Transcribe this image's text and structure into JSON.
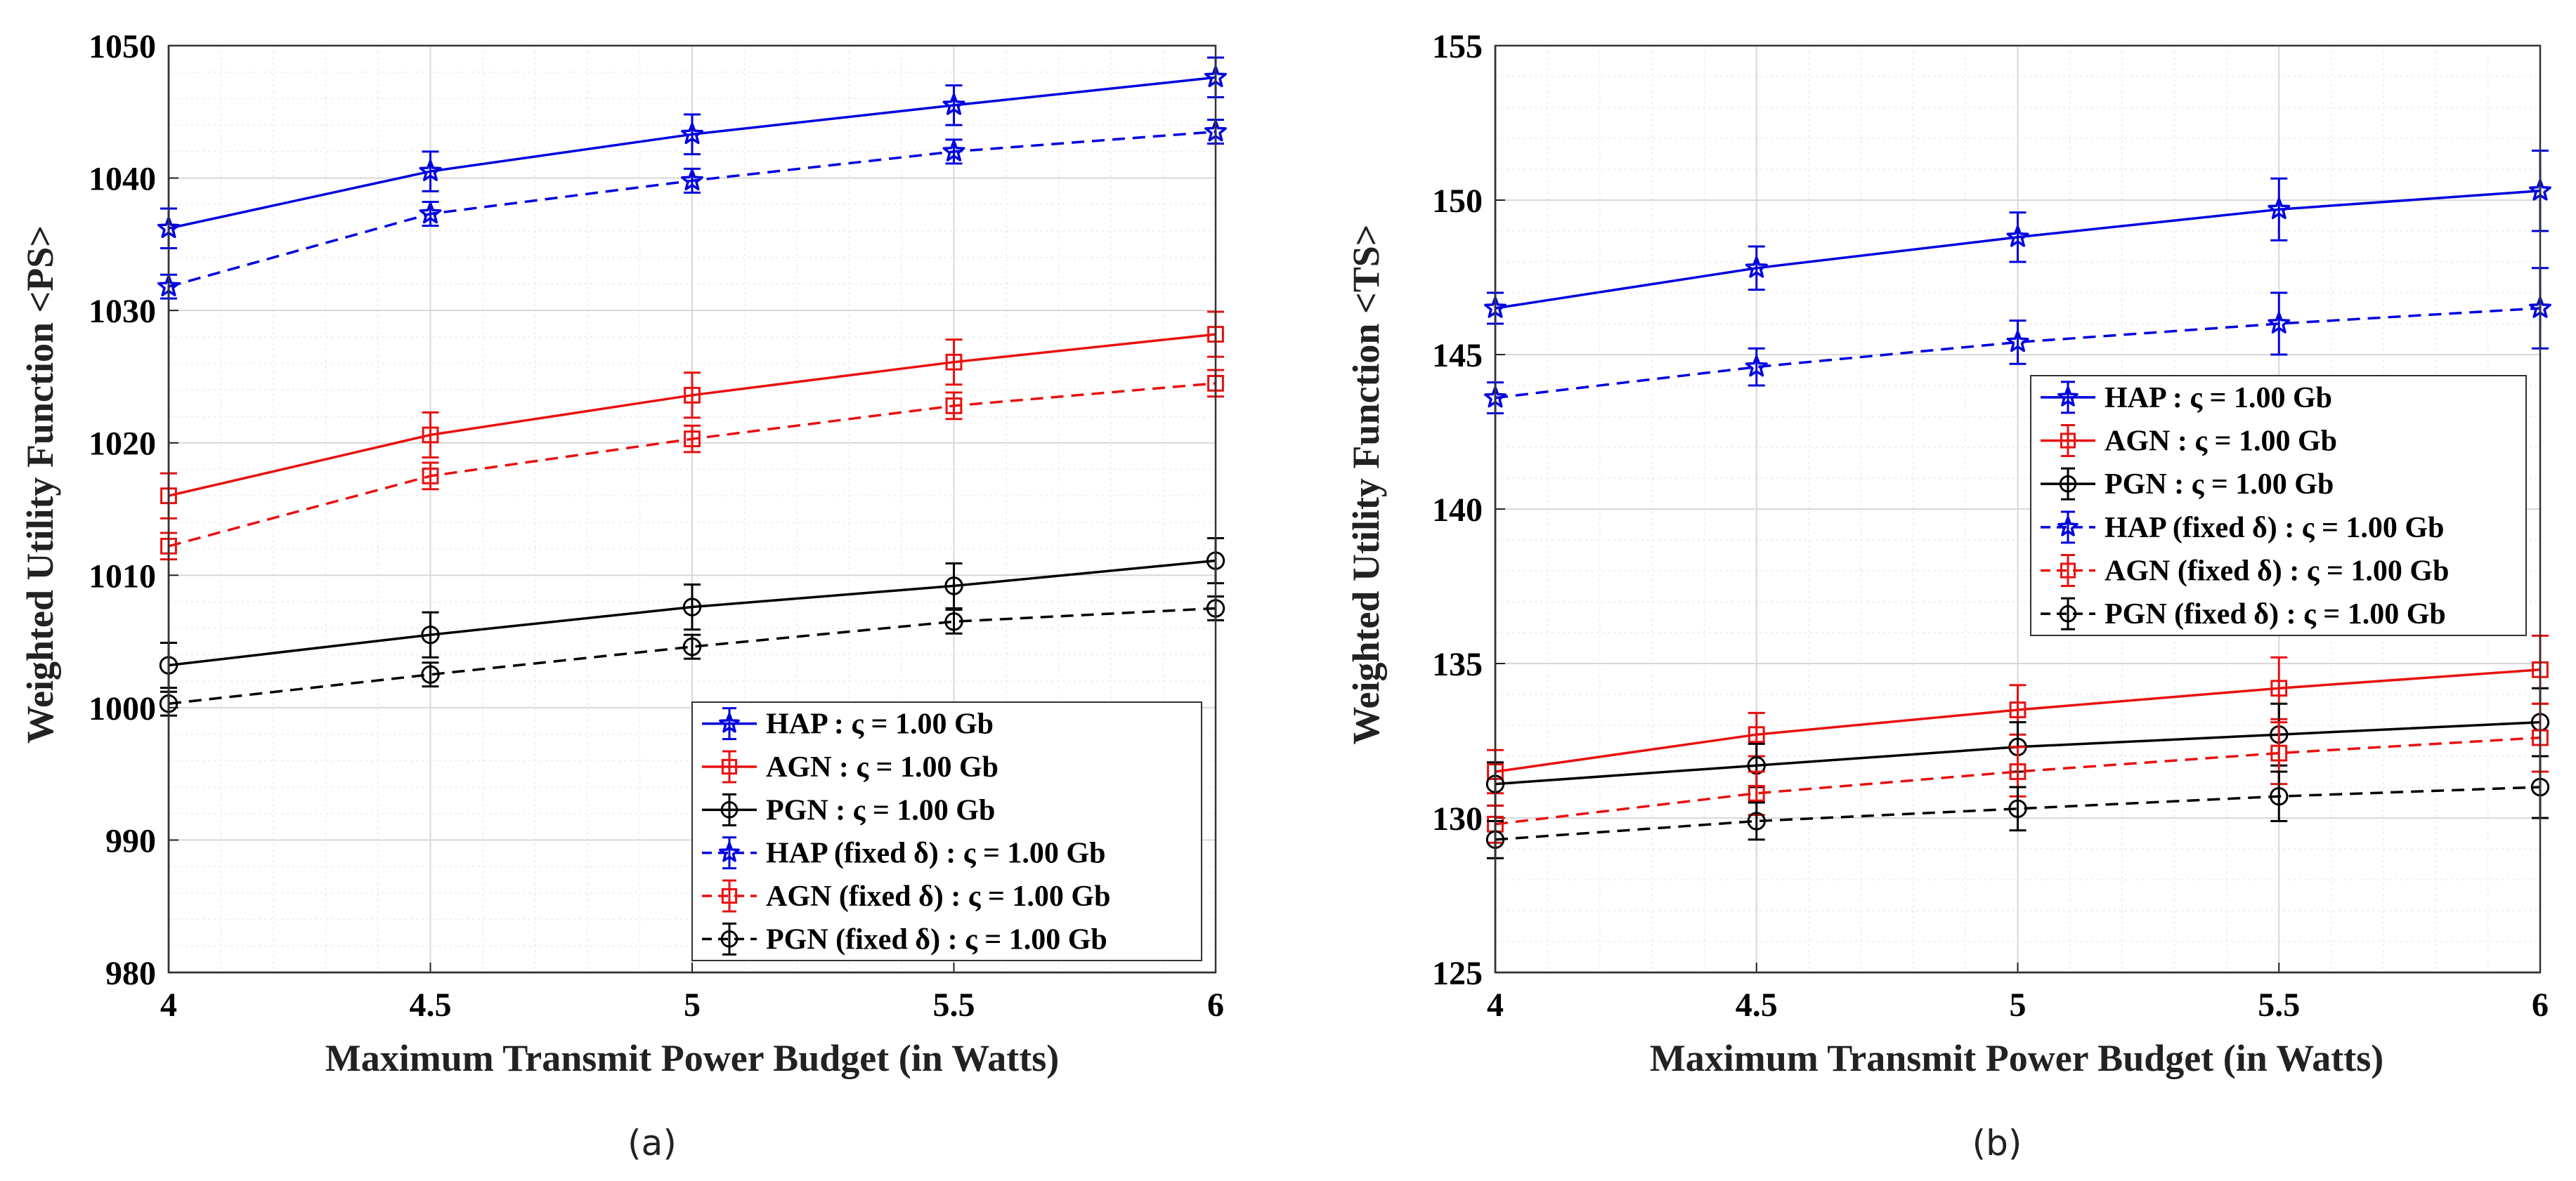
{
  "chart_data": [
    {
      "id": "a",
      "type": "line",
      "caption": "(a)",
      "xlabel": "Maximum Transmit Power Budget (in Watts)",
      "ylabel": "Weighted Utility Function <PS>",
      "x": [
        4,
        4.5,
        5,
        5.5,
        6
      ],
      "x_tick_labels": [
        "4",
        "4.5",
        "5",
        "5.5",
        "6"
      ],
      "xlim": [
        4,
        6
      ],
      "ylim": [
        980,
        1050
      ],
      "y_ticks": [
        980,
        990,
        1000,
        1010,
        1020,
        1030,
        1040,
        1050
      ],
      "grid": true,
      "legend_position": "bottom-right",
      "series": [
        {
          "name": "HAP : ς = 1.00 Gb",
          "color": "#0000e0",
          "dash": "solid",
          "marker": "star",
          "values": [
            1036.2,
            1040.5,
            1043.3,
            1045.5,
            1047.6
          ],
          "errors": [
            1.5,
            1.5,
            1.5,
            1.5,
            1.5
          ]
        },
        {
          "name": "AGN : ς = 1.00 Gb",
          "color": "#e81010",
          "dash": "solid",
          "marker": "square",
          "values": [
            1016.0,
            1020.6,
            1023.6,
            1026.1,
            1028.2
          ],
          "errors": [
            1.7,
            1.7,
            1.7,
            1.7,
            1.7
          ]
        },
        {
          "name": "PGN : ς = 1.00 Gb",
          "color": "#000000",
          "dash": "solid",
          "marker": "circle",
          "values": [
            1003.2,
            1005.5,
            1007.6,
            1009.2,
            1011.1
          ],
          "errors": [
            1.7,
            1.7,
            1.7,
            1.7,
            1.7
          ]
        },
        {
          "name": "HAP (fixed δ) : ς = 1.00 Gb",
          "color": "#0000e0",
          "dash": "dashed",
          "marker": "star",
          "values": [
            1031.8,
            1037.3,
            1039.8,
            1042.0,
            1043.5
          ],
          "errors": [
            0.9,
            0.9,
            0.9,
            0.9,
            0.9
          ]
        },
        {
          "name": "AGN (fixed δ) : ς = 1.00 Gb",
          "color": "#e81010",
          "dash": "dashed",
          "marker": "square",
          "values": [
            1012.2,
            1017.5,
            1020.3,
            1022.8,
            1024.5
          ],
          "errors": [
            1.0,
            1.0,
            1.0,
            1.0,
            1.0
          ]
        },
        {
          "name": "PGN (fixed δ) : ς = 1.00 Gb",
          "color": "#000000",
          "dash": "dashed",
          "marker": "circle",
          "values": [
            1000.3,
            1002.5,
            1004.6,
            1006.5,
            1007.5
          ],
          "errors": [
            0.9,
            0.9,
            0.9,
            0.9,
            0.9
          ]
        }
      ]
    },
    {
      "id": "b",
      "type": "line",
      "caption": "(b)",
      "xlabel": "Maximum Transmit Power Budget (in Watts)",
      "ylabel": "Weighted Utility Function <TS>",
      "x": [
        4,
        4.5,
        5,
        5.5,
        6
      ],
      "x_tick_labels": [
        "4",
        "4.5",
        "5",
        "5.5",
        "6"
      ],
      "xlim": [
        4,
        6
      ],
      "ylim": [
        125,
        155
      ],
      "y_ticks": [
        125,
        130,
        135,
        140,
        145,
        150,
        155
      ],
      "grid": true,
      "legend_position": "middle-right",
      "series": [
        {
          "name": "HAP : ς = 1.00 Gb",
          "color": "#0000e0",
          "dash": "solid",
          "marker": "star",
          "values": [
            146.5,
            147.8,
            148.8,
            149.7,
            150.3
          ],
          "errors": [
            0.5,
            0.7,
            0.8,
            1.0,
            1.3
          ]
        },
        {
          "name": "AGN : ς = 1.00 Gb",
          "color": "#e81010",
          "dash": "solid",
          "marker": "square",
          "values": [
            131.5,
            132.7,
            133.5,
            134.2,
            134.8
          ],
          "errors": [
            0.7,
            0.7,
            0.8,
            1.0,
            1.1
          ]
        },
        {
          "name": "PGN : ς = 1.00 Gb",
          "color": "#000000",
          "dash": "solid",
          "marker": "circle",
          "values": [
            131.1,
            131.7,
            132.3,
            132.7,
            133.1
          ],
          "errors": [
            0.7,
            0.7,
            0.8,
            1.0,
            1.1
          ]
        },
        {
          "name": "HAP (fixed δ) : ς = 1.00 Gb",
          "color": "#0000e0",
          "dash": "dashed",
          "marker": "star",
          "values": [
            143.6,
            144.6,
            145.4,
            146.0,
            146.5
          ],
          "errors": [
            0.5,
            0.6,
            0.7,
            1.0,
            1.3
          ]
        },
        {
          "name": "AGN (fixed δ) : ς = 1.00 Gb",
          "color": "#e81010",
          "dash": "dashed",
          "marker": "square",
          "values": [
            129.8,
            130.8,
            131.5,
            132.1,
            132.6
          ],
          "errors": [
            0.6,
            0.7,
            0.8,
            1.0,
            1.1
          ]
        },
        {
          "name": "PGN (fixed δ) : ς = 1.00 Gb",
          "color": "#000000",
          "dash": "dashed",
          "marker": "circle",
          "values": [
            129.3,
            129.9,
            130.3,
            130.7,
            131.0
          ],
          "errors": [
            0.6,
            0.6,
            0.7,
            0.8,
            1.0
          ]
        }
      ]
    }
  ]
}
